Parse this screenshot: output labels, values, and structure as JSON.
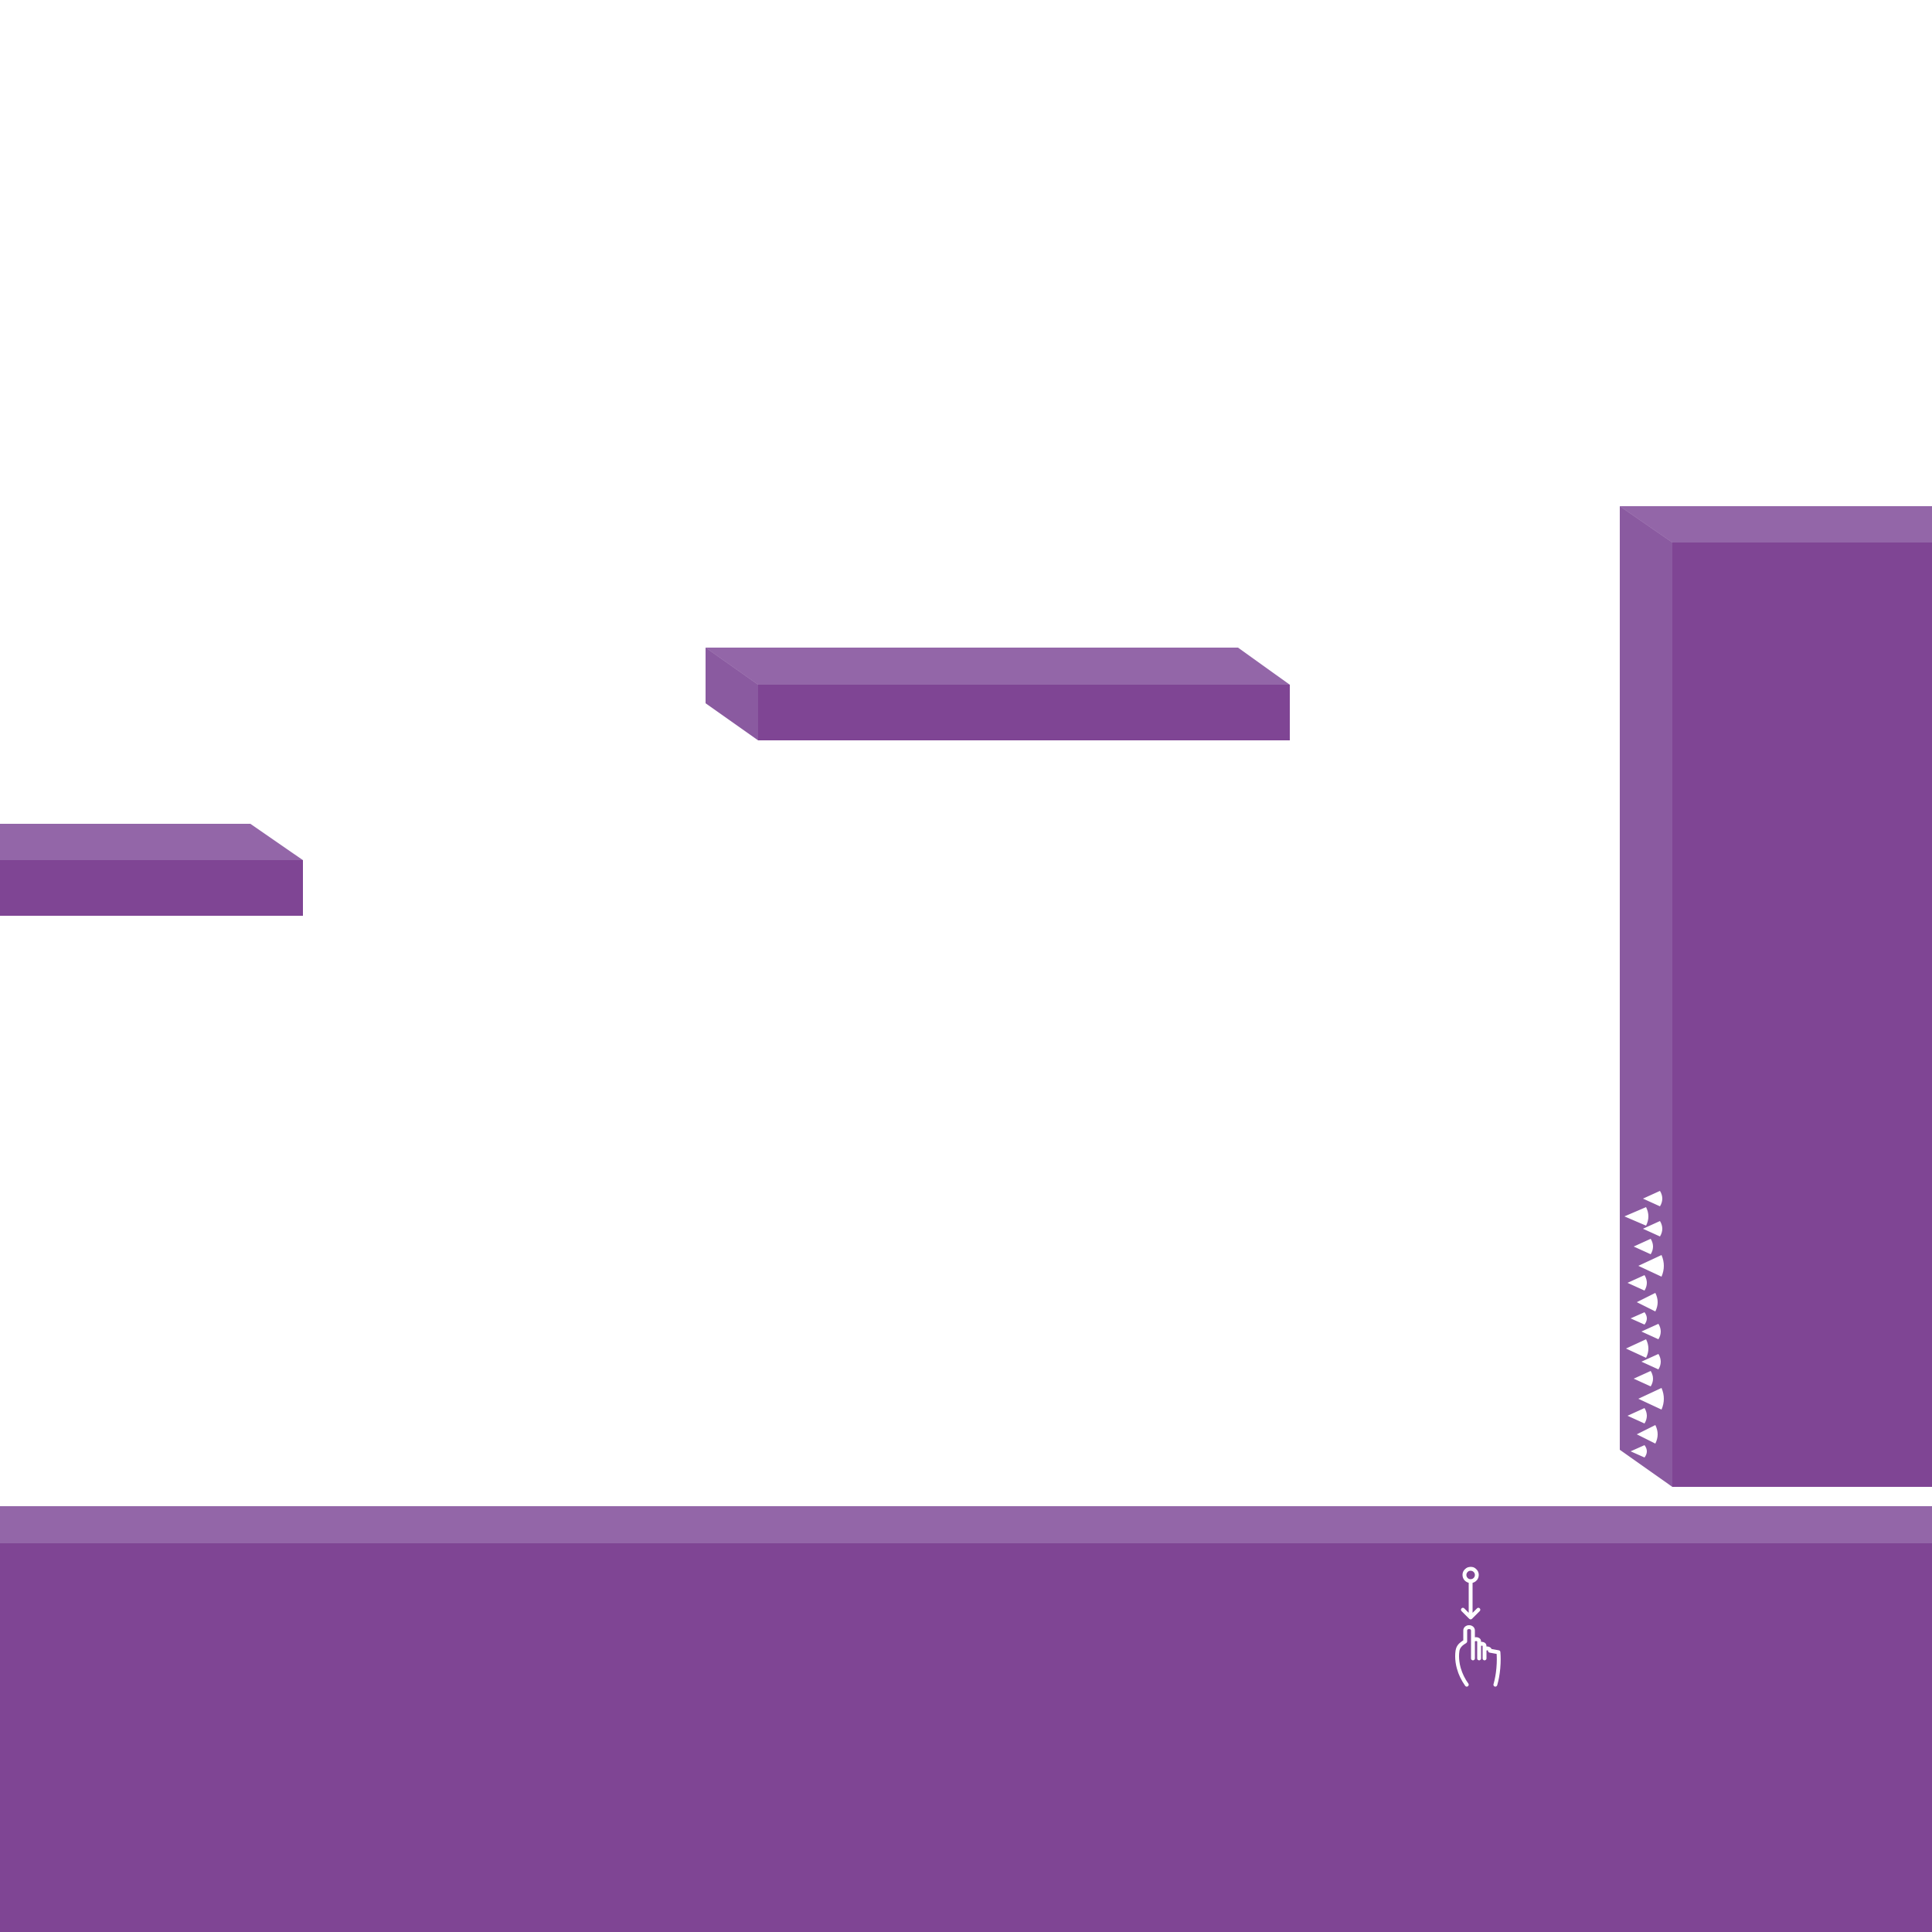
{
  "scene": {
    "background_color": "#ffffff",
    "colors": {
      "platform_top": "#9366a8",
      "platform_side": "#8a5aa0",
      "platform_front": "#7f4594",
      "spike": "#ffffff",
      "hint_icon": "#ffffff"
    },
    "objects": [
      "ground-platform",
      "left-ledge-platform",
      "floating-platform",
      "tall-wall-platform",
      "wall-spike-strip"
    ],
    "hint": {
      "icon": "tap-down-hand-icon",
      "gesture": "swipe-down"
    }
  }
}
